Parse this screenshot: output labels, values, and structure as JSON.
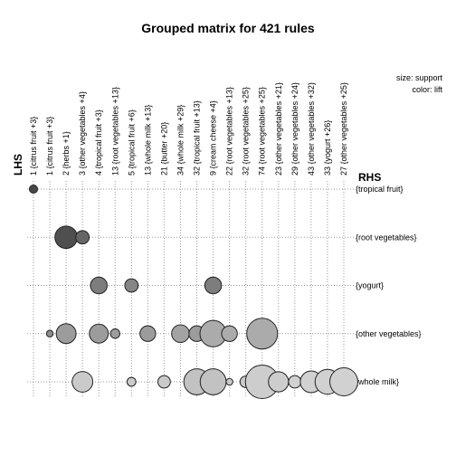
{
  "chart_data": {
    "type": "scatter",
    "title": "Grouped matrix for 421 rules",
    "xlabel": "LHS",
    "ylabel": "RHS",
    "legend": {
      "size": "size: support",
      "color": "color: lift"
    },
    "lhs_groups": [
      "1 {citrus fruit +3}",
      "1 {citrus fruit +3}",
      "2 {herbs +1}",
      "3 {other vegetables +4}",
      "4 {tropical fruit +3}",
      "13 {root vegetables +13}",
      "5 {tropical fruit +6}",
      "13 {whole milk +13}",
      "21 {butter +20}",
      "34 {whole milk +29}",
      "32 {tropical fruit +13}",
      "9 {cream cheese  +4}",
      "22 {root vegetables +13}",
      "32 {root vegetables +25}",
      "74 {root vegetables +25}",
      "23 {other vegetables +21}",
      "29 {other vegetables +24}",
      "43 {other vegetables +32}",
      "33 {yogurt +26}",
      "27 {other vegetables +25}"
    ],
    "rhs_items": [
      "{tropical fruit}",
      "{root vegetables}",
      "{yogurt}",
      "{other vegetables}",
      "{whole milk}"
    ],
    "points": [
      {
        "lhs": 0,
        "rhs": 0,
        "support": 0.06,
        "lift": 0.95
      },
      {
        "lhs": 2,
        "rhs": 1,
        "support": 0.45,
        "lift": 0.9
      },
      {
        "lhs": 3,
        "rhs": 1,
        "support": 0.16,
        "lift": 0.75
      },
      {
        "lhs": 4,
        "rhs": 2,
        "support": 0.25,
        "lift": 0.6
      },
      {
        "lhs": 6,
        "rhs": 2,
        "support": 0.16,
        "lift": 0.55
      },
      {
        "lhs": 11,
        "rhs": 2,
        "support": 0.25,
        "lift": 0.6
      },
      {
        "lhs": 1,
        "rhs": 3,
        "support": 0.04,
        "lift": 0.5
      },
      {
        "lhs": 2,
        "rhs": 3,
        "support": 0.35,
        "lift": 0.4
      },
      {
        "lhs": 4,
        "rhs": 3,
        "support": 0.32,
        "lift": 0.4
      },
      {
        "lhs": 5,
        "rhs": 3,
        "support": 0.08,
        "lift": 0.4
      },
      {
        "lhs": 7,
        "rhs": 3,
        "support": 0.22,
        "lift": 0.4
      },
      {
        "lhs": 9,
        "rhs": 3,
        "support": 0.28,
        "lift": 0.35
      },
      {
        "lhs": 10,
        "rhs": 3,
        "support": 0.22,
        "lift": 0.4
      },
      {
        "lhs": 11,
        "rhs": 3,
        "support": 0.62,
        "lift": 0.3
      },
      {
        "lhs": 12,
        "rhs": 3,
        "support": 0.22,
        "lift": 0.3
      },
      {
        "lhs": 14,
        "rhs": 3,
        "support": 0.85,
        "lift": 0.3
      },
      {
        "lhs": 3,
        "rhs": 4,
        "support": 0.38,
        "lift": 0.1
      },
      {
        "lhs": 6,
        "rhs": 4,
        "support": 0.07,
        "lift": 0.1
      },
      {
        "lhs": 8,
        "rhs": 4,
        "support": 0.14,
        "lift": 0.1
      },
      {
        "lhs": 10,
        "rhs": 4,
        "support": 0.6,
        "lift": 0.15
      },
      {
        "lhs": 11,
        "rhs": 4,
        "support": 0.6,
        "lift": 0.15
      },
      {
        "lhs": 12,
        "rhs": 4,
        "support": 0.04,
        "lift": 0.1
      },
      {
        "lhs": 13,
        "rhs": 4,
        "support": 0.12,
        "lift": 0.1
      },
      {
        "lhs": 14,
        "rhs": 4,
        "support": 1.0,
        "lift": 0.08
      },
      {
        "lhs": 15,
        "rhs": 4,
        "support": 0.36,
        "lift": 0.08
      },
      {
        "lhs": 16,
        "rhs": 4,
        "support": 0.14,
        "lift": 0.05
      },
      {
        "lhs": 17,
        "rhs": 4,
        "support": 0.42,
        "lift": 0.05
      },
      {
        "lhs": 18,
        "rhs": 4,
        "support": 0.55,
        "lift": 0.05
      },
      {
        "lhs": 19,
        "rhs": 4,
        "support": 0.7,
        "lift": 0.05
      }
    ],
    "colors": {
      "low_lift": "#d9d9d9",
      "high_lift": "#404040"
    },
    "grid": true
  }
}
